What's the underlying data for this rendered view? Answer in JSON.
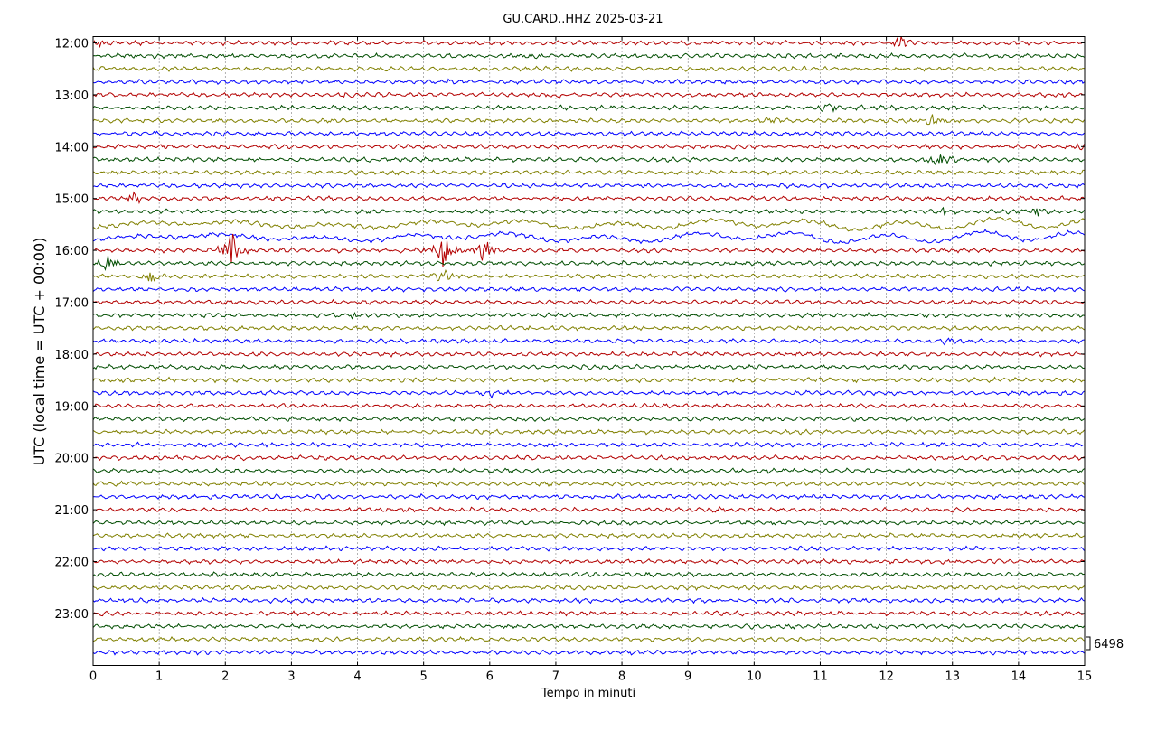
{
  "chart_data": {
    "type": "line",
    "title": "GU.CARD..HHZ 2025-03-21",
    "xlabel": "Tempo in minuti",
    "ylabel": "UTC (local time = UTC + 00:00)",
    "xlim": [
      0,
      15
    ],
    "x_ticks": [
      "0",
      "1",
      "2",
      "3",
      "4",
      "5",
      "6",
      "7",
      "8",
      "9",
      "10",
      "11",
      "12",
      "13",
      "14",
      "15"
    ],
    "y_ticks": [
      "12:00",
      "13:00",
      "14:00",
      "15:00",
      "16:00",
      "17:00",
      "18:00",
      "19:00",
      "20:00",
      "21:00",
      "22:00",
      "23:00"
    ],
    "scale_label": "6498",
    "grid": "vertical dotted",
    "trace_colors": [
      "#b30000",
      "#004d00",
      "#808000",
      "#0000ff"
    ],
    "traces_per_hour": 4,
    "trace_count": 48,
    "events": [
      {
        "trace": "12:00",
        "minute": 0.1,
        "amp": 0.4
      },
      {
        "trace": "12:00",
        "minute": 12.2,
        "amp": 0.9
      },
      {
        "trace": "12:15",
        "minute": 6.7,
        "amp": 0.4
      },
      {
        "trace": "12:45",
        "minute": 5.3,
        "amp": 0.4
      },
      {
        "trace": "13:00",
        "minute": 3.9,
        "amp": 0.4
      },
      {
        "trace": "13:00",
        "minute": 7.0,
        "amp": 0.5
      },
      {
        "trace": "13:15",
        "minute": 11.1,
        "amp": 0.7
      },
      {
        "trace": "13:15",
        "minute": 11.7,
        "amp": 0.5
      },
      {
        "trace": "13:30",
        "minute": 10.2,
        "amp": 0.5
      },
      {
        "trace": "13:30",
        "minute": 12.7,
        "amp": 0.8
      },
      {
        "trace": "14:00",
        "minute": 15.0,
        "amp": 0.9
      },
      {
        "trace": "14:15",
        "minute": 12.8,
        "amp": 1.2
      },
      {
        "trace": "15:00",
        "minute": 0.6,
        "amp": 0.7
      },
      {
        "trace": "15:15",
        "minute": 12.9,
        "amp": 0.6
      },
      {
        "trace": "15:15",
        "minute": 14.3,
        "amp": 0.7
      },
      {
        "trace": "16:00",
        "minute": 2.1,
        "amp": 2.5
      },
      {
        "trace": "16:00",
        "minute": 5.3,
        "amp": 2.2
      },
      {
        "trace": "16:00",
        "minute": 5.9,
        "amp": 1.8
      },
      {
        "trace": "16:15",
        "minute": 0.2,
        "amp": 1.0
      },
      {
        "trace": "16:30",
        "minute": 0.9,
        "amp": 0.9
      },
      {
        "trace": "16:30",
        "minute": 5.3,
        "amp": 0.9
      },
      {
        "trace": "17:15",
        "minute": 3.9,
        "amp": 0.6
      },
      {
        "trace": "17:45",
        "minute": 12.9,
        "amp": 0.4
      },
      {
        "trace": "18:45",
        "minute": 6.0,
        "amp": 0.4
      },
      {
        "trace": "21:00",
        "minute": 9.4,
        "amp": 0.4
      },
      {
        "trace": "20:45",
        "minute": 10.8,
        "amp": 0.4
      }
    ]
  }
}
